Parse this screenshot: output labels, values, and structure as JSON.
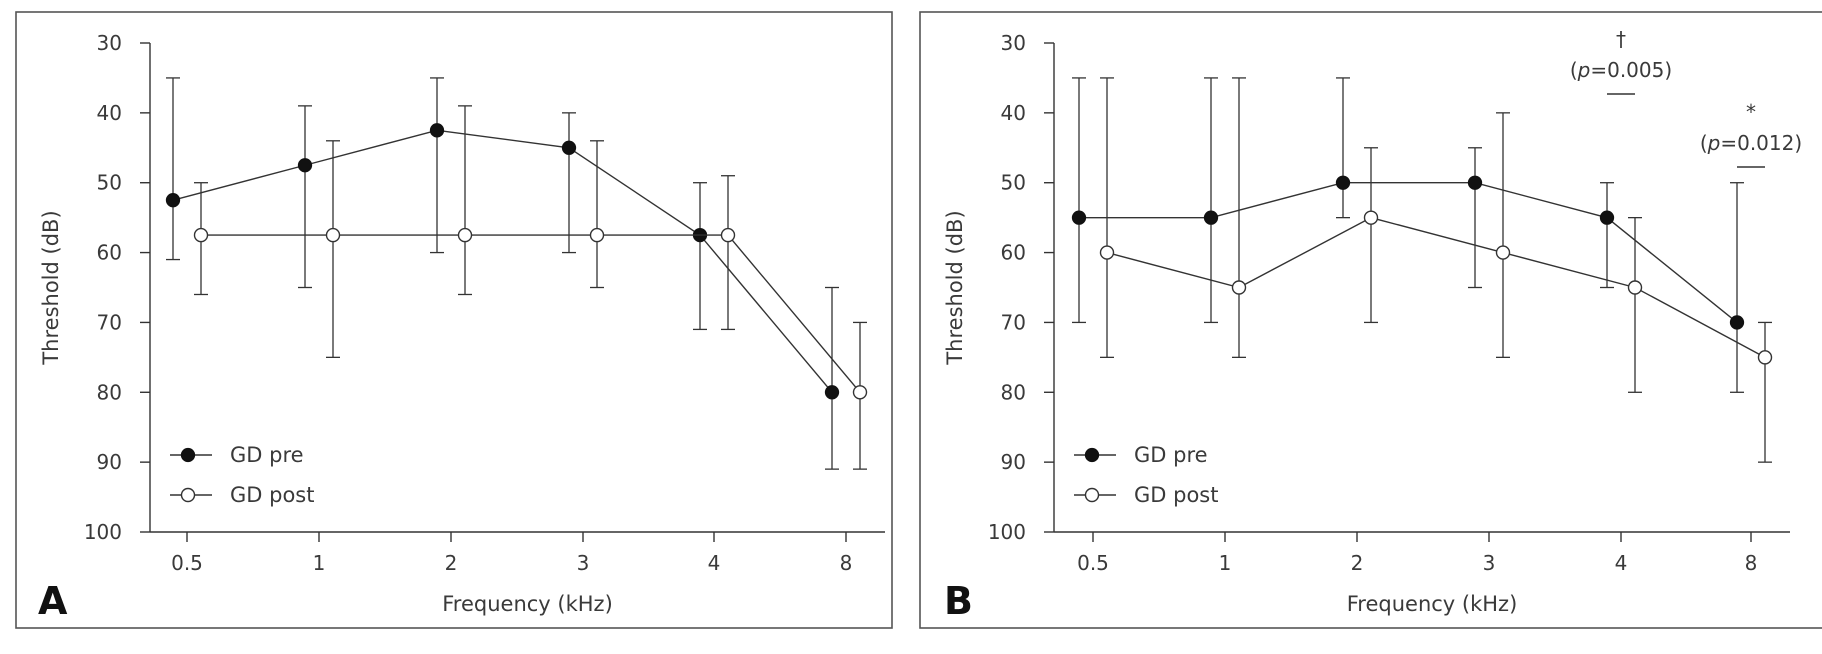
{
  "chart_data": [
    {
      "type": "line",
      "panel": "A",
      "title": "",
      "xlabel": "Frequency (kHz)",
      "ylabel": "Threshold (dB)",
      "categories": [
        "0.5",
        "1",
        "2",
        "3",
        "4",
        "8"
      ],
      "yticks": [
        "30",
        "40",
        "50",
        "60",
        "70",
        "80",
        "90",
        "100"
      ],
      "ylim": [
        30,
        100
      ],
      "y_inverted": true,
      "grid": false,
      "legend_placement": "bottom-left",
      "series": [
        {
          "name": "GD pre",
          "marker": "filled-circle",
          "values": [
            52.5,
            47.5,
            42.5,
            45,
            57.5,
            80
          ],
          "err_low": [
            61,
            65,
            60,
            60,
            71,
            91
          ],
          "err_high": [
            35,
            39,
            35,
            40,
            50,
            65
          ]
        },
        {
          "name": "GD post",
          "marker": "open-circle",
          "values": [
            57.5,
            57.5,
            57.5,
            57.5,
            57.5,
            80
          ],
          "err_low": [
            66,
            75,
            66,
            65,
            71,
            91
          ],
          "err_high": [
            50,
            44,
            39,
            44,
            49,
            70
          ]
        }
      ],
      "annotations": []
    },
    {
      "type": "line",
      "panel": "B",
      "title": "",
      "xlabel": "Frequency (kHz)",
      "ylabel": "Threshold (dB)",
      "categories": [
        "0.5",
        "1",
        "2",
        "3",
        "4",
        "8"
      ],
      "yticks": [
        "30",
        "40",
        "50",
        "60",
        "70",
        "80",
        "90",
        "100"
      ],
      "ylim": [
        30,
        100
      ],
      "y_inverted": true,
      "grid": false,
      "legend_placement": "bottom-left",
      "series": [
        {
          "name": "GD pre",
          "marker": "filled-circle",
          "values": [
            55,
            55,
            50,
            50,
            55,
            70
          ],
          "err_low": [
            70,
            70,
            55,
            65,
            65,
            80
          ],
          "err_high": [
            35,
            35,
            35,
            45,
            50,
            50
          ]
        },
        {
          "name": "GD post",
          "marker": "open-circle",
          "values": [
            60,
            65,
            55,
            60,
            65,
            75
          ],
          "err_low": [
            75,
            75,
            70,
            75,
            80,
            90
          ],
          "err_high": [
            35,
            35,
            45,
            40,
            55,
            70
          ]
        }
      ],
      "annotations": [
        {
          "category_index": 4,
          "symbol": "†",
          "p_label": "p",
          "p_value": "=0.005"
        },
        {
          "category_index": 5,
          "symbol": "*",
          "p_label": "p",
          "p_value": "=0.012"
        }
      ]
    }
  ]
}
